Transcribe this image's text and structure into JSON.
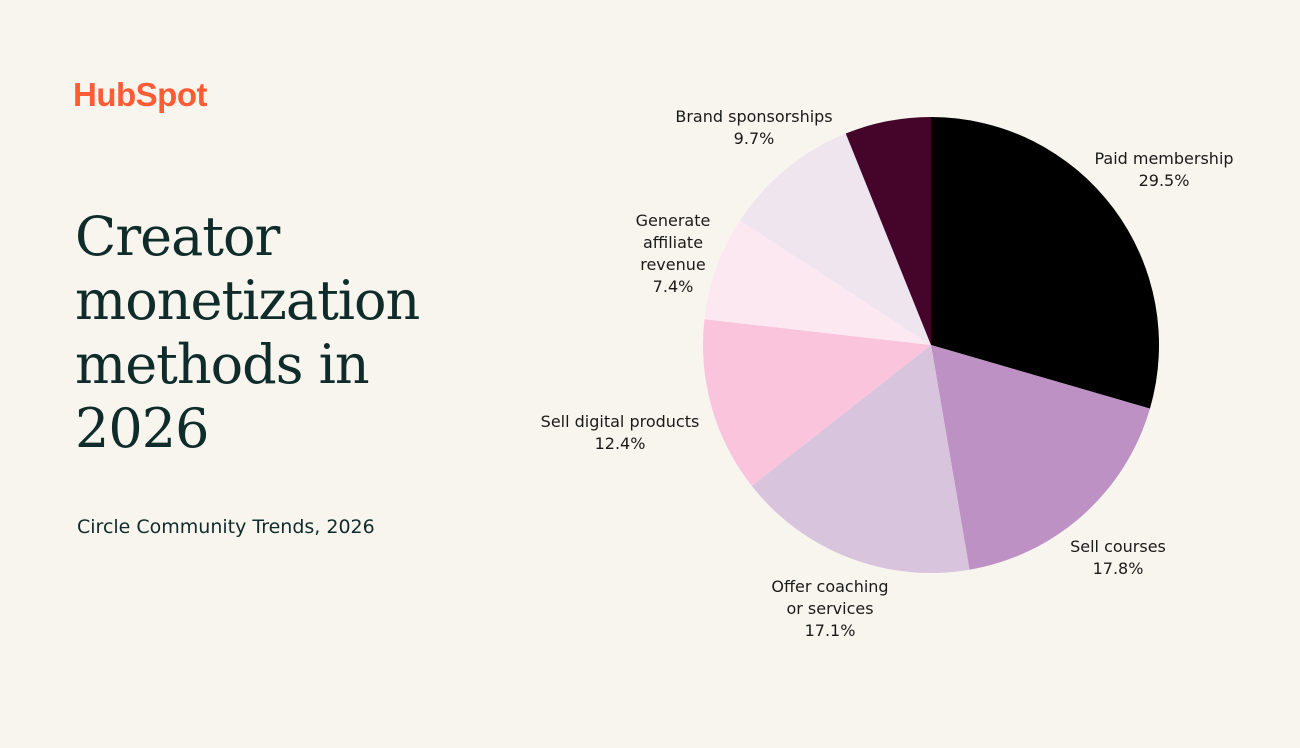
{
  "brand": {
    "logo": "HubSpot",
    "color": "#FF5C35"
  },
  "title": "Creator monetization methods in 2026",
  "source": "Circle Community Trends, 2026",
  "chart_data": {
    "type": "pie",
    "title": "Creator monetization methods in 2026",
    "start": "top, clockwise",
    "slices": [
      {
        "label": [
          "Paid membership"
        ],
        "value": 29.5,
        "display": "29.5%",
        "color": "#000000"
      },
      {
        "label": [
          "Sell courses"
        ],
        "value": 17.8,
        "display": "17.8%",
        "color": "#BD91C4"
      },
      {
        "label": [
          "Offer coaching",
          "or services"
        ],
        "value": 17.1,
        "display": "17.1%",
        "color": "#D8C4DD"
      },
      {
        "label": [
          "Sell digital products"
        ],
        "value": 12.4,
        "display": "12.4%",
        "color": "#F9C4DC"
      },
      {
        "label": [
          "Generate",
          "affiliate",
          "revenue"
        ],
        "value": 7.4,
        "display": "7.4%",
        "color": "#FCE8F1"
      },
      {
        "label": [
          "Brand sponsorships"
        ],
        "value": 9.7,
        "display": "9.7%",
        "color": "#EFE5EF"
      },
      {
        "label": [],
        "value": 6.1,
        "display": "",
        "color": "#45052A"
      }
    ]
  }
}
